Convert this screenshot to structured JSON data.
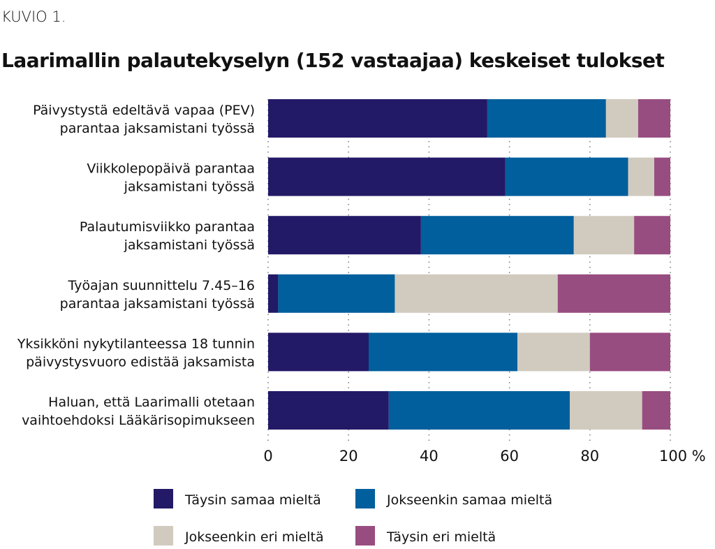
{
  "figure_label": "KUVIO 1.",
  "chart_data": {
    "type": "bar",
    "orientation": "horizontal",
    "stacked": true,
    "title": "Laarimallin palautekyselyn (152 vastaajaa) keskeiset tulokset",
    "categories": [
      [
        "Päivystystä edeltävä vapaa (PEV)",
        "parantaa jaksamistani työssä"
      ],
      [
        "Viikkolepopäivä parantaa",
        "jaksamistani työssä"
      ],
      [
        "Palautumisviikko parantaa",
        "jaksamistani työssä"
      ],
      [
        "Työajan suunnittelu 7.45–16",
        "parantaa jaksamistani työssä"
      ],
      [
        "Yksikköni nykytilanteessa 18 tunnin",
        "päivystysvuoro edistää jaksamista"
      ],
      [
        "Haluan, että Laarimalli otetaan",
        "vaihtoehdoksi Lääkärisopimukseen"
      ]
    ],
    "series": [
      {
        "name": "Täysin samaa mieltä",
        "color": "#221a66",
        "values": [
          54.5,
          59,
          38,
          2.5,
          25,
          30
        ]
      },
      {
        "name": "Jokseenkin samaa mieltä",
        "color": "#005f9c",
        "values": [
          29.5,
          30.5,
          38,
          29,
          37,
          45
        ]
      },
      {
        "name": "Jokseenkin eri mieltä",
        "color": "#d1cbbf",
        "values": [
          8,
          6.5,
          15,
          40.5,
          18,
          18
        ]
      },
      {
        "name": "Täysin eri mieltä",
        "color": "#984d80",
        "values": [
          8,
          4,
          9,
          28,
          20,
          7
        ]
      }
    ],
    "xlim": [
      0,
      100
    ],
    "xticks": [
      "0",
      "20",
      "40",
      "60",
      "80",
      "100 %"
    ],
    "xlabel": "",
    "ylabel": "",
    "grid": "dotted vertical",
    "legend_position": "bottom"
  }
}
